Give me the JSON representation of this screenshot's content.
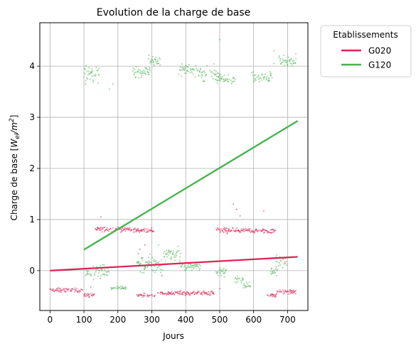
{
  "chart_data": {
    "type": "scatter",
    "title": "Evolution de la charge de base",
    "xlabel": "Jours",
    "ylabel_prefix": "Charge de base [",
    "ylabel_unit_main": "W",
    "ylabel_unit_sub": "el",
    "ylabel_unit_div": "/m",
    "ylabel_unit_sup": "2",
    "ylabel_suffix": "]",
    "xlim": [
      -30,
      760
    ],
    "ylim": [
      -0.78,
      4.85
    ],
    "xticks": [
      0,
      100,
      200,
      300,
      400,
      500,
      600,
      700
    ],
    "yticks": [
      0,
      1,
      2,
      3,
      4
    ],
    "grid": true,
    "legend": {
      "title": "Etablissements",
      "position": "outside-top-right",
      "entries": [
        "G020",
        "G120"
      ]
    },
    "series": [
      {
        "name": "G020",
        "color": "#dc2456",
        "trend": {
          "x": [
            0,
            730
          ],
          "y": [
            0.0,
            0.27
          ]
        },
        "segments": [
          {
            "x0": 0,
            "x1": 95,
            "y": -0.38,
            "noise": 0.02
          },
          {
            "x0": 100,
            "x1": 130,
            "y": -0.48,
            "noise": 0.02
          },
          {
            "x0": 130,
            "x1": 235,
            "y": 0.81,
            "noise": 0.025
          },
          {
            "x0": 235,
            "x1": 305,
            "y": 0.79,
            "noise": 0.02
          },
          {
            "x0": 255,
            "x1": 310,
            "y": -0.49,
            "noise": 0.02
          },
          {
            "x0": 318,
            "x1": 485,
            "y": -0.44,
            "noise": 0.02
          },
          {
            "x0": 490,
            "x1": 560,
            "y": 0.78,
            "noise": 0.03
          },
          {
            "x0": 560,
            "x1": 665,
            "y": 0.78,
            "noise": 0.025
          },
          {
            "x0": 640,
            "x1": 670,
            "y": -0.48,
            "noise": 0.02
          },
          {
            "x0": 670,
            "x1": 725,
            "y": -0.41,
            "noise": 0.02
          }
        ],
        "outliers": [
          [
            150,
            1.05
          ],
          [
            540,
            1.3
          ],
          [
            550,
            1.2
          ],
          [
            560,
            1.07
          ],
          [
            630,
            1.17
          ],
          [
            265,
            0.42
          ],
          [
            270,
            0.25
          ],
          [
            280,
            0.5
          ],
          [
            260,
            0.33
          ],
          [
            120,
            -0.32
          ],
          [
            330,
            -0.1
          ],
          [
            500,
            -0.35
          ]
        ]
      },
      {
        "name": "G120",
        "color": "#44b24d",
        "trend": {
          "x": [
            100,
            730
          ],
          "y": [
            0.41,
            2.93
          ]
        },
        "segments": [
          {
            "x0": 100,
            "x1": 145,
            "y": 3.85,
            "noise": 0.1
          },
          {
            "x0": 105,
            "x1": 175,
            "y": -0.02,
            "noise": 0.06
          },
          {
            "x0": 180,
            "x1": 225,
            "y": -0.34,
            "noise": 0.015
          },
          {
            "x0": 245,
            "x1": 295,
            "y": 3.9,
            "noise": 0.06
          },
          {
            "x0": 290,
            "x1": 325,
            "y": 4.1,
            "noise": 0.05
          },
          {
            "x0": 255,
            "x1": 335,
            "y": 0.12,
            "noise": 0.08
          },
          {
            "x0": 335,
            "x1": 385,
            "y": 0.32,
            "noise": 0.06
          },
          {
            "x0": 380,
            "x1": 445,
            "y": 3.93,
            "noise": 0.06
          },
          {
            "x0": 385,
            "x1": 445,
            "y": 0.08,
            "noise": 0.04
          },
          {
            "x0": 445,
            "x1": 500,
            "y": 3.85,
            "noise": 0.07
          },
          {
            "x0": 490,
            "x1": 545,
            "y": 3.75,
            "noise": 0.05
          },
          {
            "x0": 490,
            "x1": 520,
            "y": -0.03,
            "noise": 0.04
          },
          {
            "x0": 545,
            "x1": 570,
            "y": -0.15,
            "noise": 0.04
          },
          {
            "x0": 570,
            "x1": 590,
            "y": -0.28,
            "noise": 0.03
          },
          {
            "x0": 595,
            "x1": 655,
            "y": 3.8,
            "noise": 0.06
          },
          {
            "x0": 650,
            "x1": 670,
            "y": 0.0,
            "noise": 0.05
          },
          {
            "x0": 665,
            "x1": 700,
            "y": 0.2,
            "noise": 0.06
          },
          {
            "x0": 675,
            "x1": 725,
            "y": 4.08,
            "noise": 0.06
          }
        ],
        "outliers": [
          [
            175,
            3.55
          ],
          [
            185,
            3.65
          ],
          [
            500,
            4.52
          ],
          [
            660,
            4.3
          ],
          [
            320,
            0.5
          ],
          [
            350,
            0.4
          ],
          [
            105,
            3.65
          ],
          [
            110,
            3.75
          ],
          [
            660,
            4.05
          ]
        ]
      }
    ]
  }
}
